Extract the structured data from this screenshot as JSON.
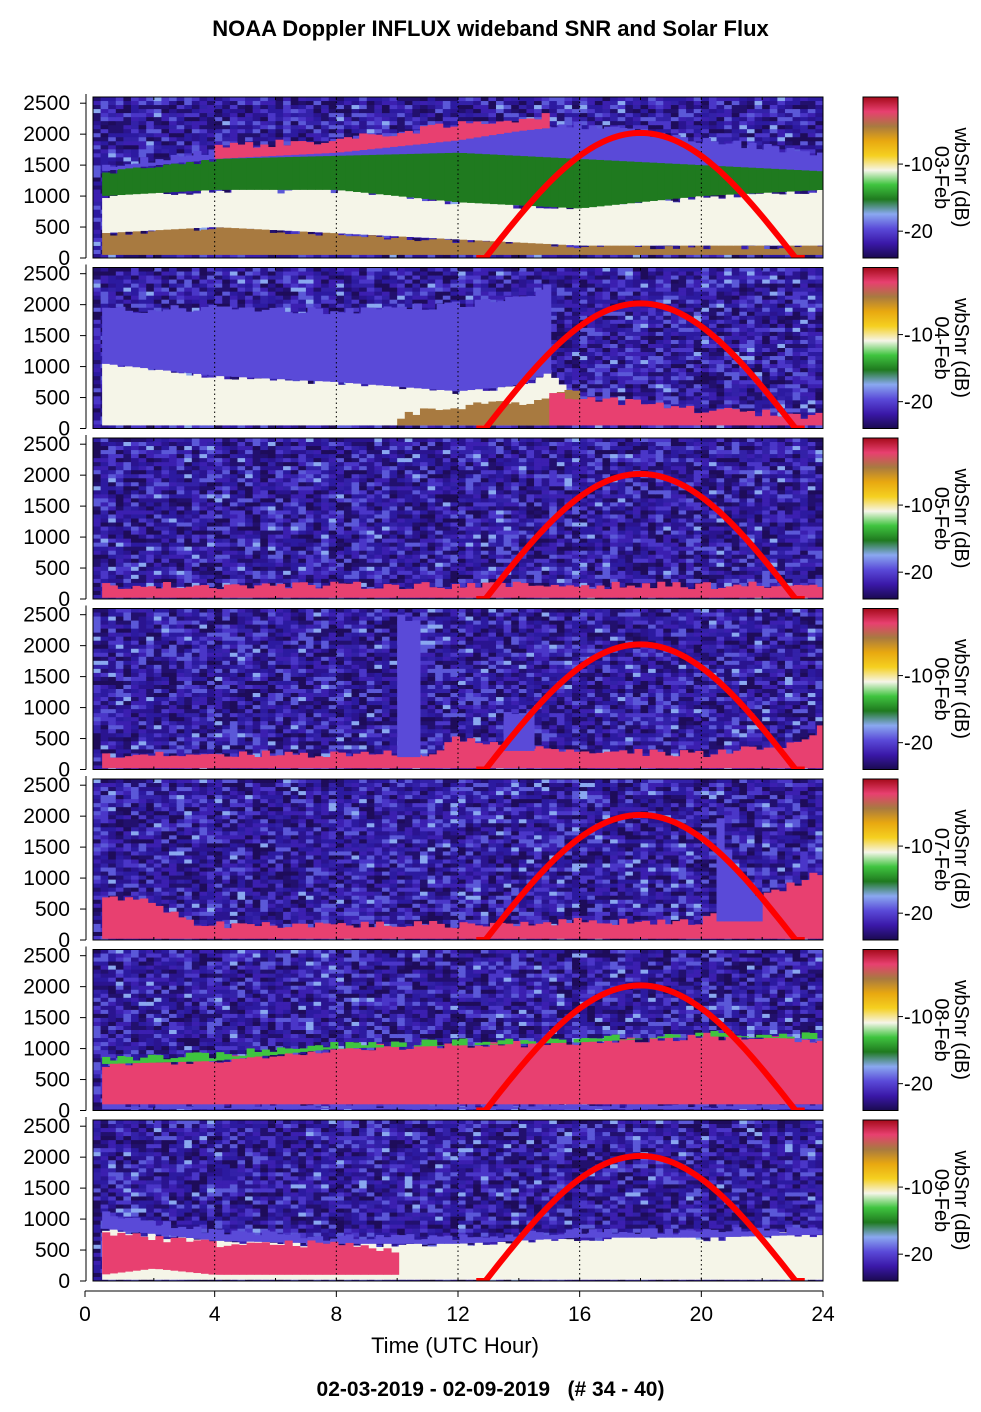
{
  "title": "NOAA Doppler INFLUX wideband SNR and Solar Flux",
  "footer": "02-03-2019 - 02-09-2019   (# 34 - 40)",
  "colors": {
    "solar_curve": "#ff0000",
    "colormap": [
      "#1a0a50",
      "#3a18a8",
      "#5a4ad8",
      "#8aa8f0",
      "#1f7a1f",
      "#3fc43f",
      "#f5f5e8",
      "#f5d020",
      "#e8a810",
      "#a87a40",
      "#e84070",
      "#a50a1a"
    ]
  },
  "chart_data": {
    "type": "heatmap",
    "xlabel": "Time (UTC Hour)",
    "xlim": [
      0,
      24
    ],
    "xticks": [
      0,
      4,
      8,
      12,
      16,
      20,
      24
    ],
    "ylim": [
      0,
      2600
    ],
    "yticks": [
      0,
      500,
      1000,
      1500,
      2000,
      2500
    ],
    "colorbar": {
      "label": "wbSnr (dB)",
      "ticks": [
        -10,
        -20
      ],
      "tick_labels": [
        "-10",
        "-20"
      ]
    },
    "solar_flux_curve": {
      "start_hour": 12.9,
      "peak_hour": 18.0,
      "end_hour": 23.1,
      "peak_y": 2020
    },
    "panels": [
      {
        "date": "03-Feb",
        "features": [
          {
            "kind": "band",
            "x": [
              0.3,
              4,
              8,
              12,
              16,
              20,
              24
            ],
            "y0": [
              50,
              50,
              50,
              50,
              50,
              50,
              50
            ],
            "y1": [
              400,
              500,
              400,
              300,
              200,
              200,
              200
            ],
            "level": -5
          },
          {
            "kind": "band",
            "x": [
              0.3,
              4,
              8,
              12,
              16,
              20,
              24
            ],
            "y0": [
              400,
              500,
              400,
              300,
              200,
              200,
              200
            ],
            "y1": [
              1000,
              1100,
              1100,
              900,
              800,
              1000,
              1100
            ],
            "level": -11
          },
          {
            "kind": "band",
            "x": [
              0.3,
              4,
              8,
              12,
              16,
              20,
              24
            ],
            "y0": [
              1000,
              1100,
              1100,
              900,
              800,
              1000,
              1100
            ],
            "y1": [
              1400,
              1600,
              1750,
              1800,
              1700,
              1600,
              1500
            ],
            "level": -16
          },
          {
            "kind": "band",
            "x": [
              0.3,
              4,
              8,
              12,
              16,
              20,
              24
            ],
            "y0": [
              1400,
              1600,
              1650,
              1700,
              1600,
              1500,
              1400
            ],
            "y1": [
              1500,
              1700,
              1900,
              2100,
              2150,
              1900,
              1700
            ],
            "level": -19
          },
          {
            "kind": "band",
            "x": [
              4,
              8,
              12,
              14,
              15
            ],
            "y0": [
              1600,
              1700,
              1900,
              2050,
              2100
            ],
            "y1": [
              1800,
              1900,
              2150,
              2250,
              2300
            ],
            "level": -2
          }
        ]
      },
      {
        "date": "04-Feb",
        "features": [
          {
            "kind": "band",
            "x": [
              0.3,
              4,
              8,
              12,
              14,
              15,
              16
            ],
            "y0": [
              50,
              50,
              50,
              50,
              50,
              50,
              50
            ],
            "y1": [
              1050,
              850,
              750,
              600,
              700,
              900,
              400
            ],
            "level": -12
          },
          {
            "kind": "band",
            "x": [
              0.3,
              4,
              8,
              12,
              14,
              15
            ],
            "y0": [
              1050,
              850,
              750,
              600,
              700,
              900
            ],
            "y1": [
              1900,
              1950,
              1900,
              2000,
              2100,
              2300
            ],
            "level": -19
          },
          {
            "kind": "band",
            "x": [
              10,
              12,
              14,
              16
            ],
            "y0": [
              50,
              50,
              50,
              50
            ],
            "y1": [
              200,
              350,
              400,
              600
            ],
            "level": -5
          },
          {
            "kind": "band",
            "x": [
              15,
              16,
              18,
              20,
              22,
              24
            ],
            "y0": [
              50,
              50,
              50,
              50,
              50,
              50
            ],
            "y1": [
              600,
              500,
              400,
              300,
              250,
              200
            ],
            "level": -2
          }
        ]
      },
      {
        "date": "05-Feb",
        "features": [
          {
            "kind": "band",
            "x": [
              0.3,
              24
            ],
            "y0": [
              20,
              20
            ],
            "y1": [
              220,
              220
            ],
            "level": -2
          }
        ]
      },
      {
        "date": "06-Feb",
        "features": [
          {
            "kind": "band",
            "x": [
              0.3,
              11,
              12,
              14,
              16,
              20,
              23,
              24
            ],
            "y0": [
              20,
              20,
              20,
              20,
              20,
              20,
              20,
              20
            ],
            "y1": [
              250,
              250,
              500,
              400,
              300,
              250,
              400,
              700
            ],
            "level": -2
          },
          {
            "kind": "band",
            "x": [
              10,
              10.6
            ],
            "y0": [
              200,
              200
            ],
            "y1": [
              2450,
              2450
            ],
            "level": -19
          },
          {
            "kind": "band",
            "x": [
              13.5,
              14.5
            ],
            "y0": [
              300,
              300
            ],
            "y1": [
              900,
              900
            ],
            "level": -19
          }
        ]
      },
      {
        "date": "07-Feb",
        "features": [
          {
            "kind": "band",
            "x": [
              0.3,
              2,
              3,
              4,
              12,
              16,
              20,
              24
            ],
            "y0": [
              20,
              20,
              20,
              20,
              20,
              20,
              20,
              20
            ],
            "y1": [
              700,
              600,
              300,
              250,
              250,
              300,
              300,
              1100
            ],
            "level": -2
          },
          {
            "kind": "band",
            "x": [
              20.5,
              21,
              22
            ],
            "y0": [
              300,
              300,
              300
            ],
            "y1": [
              2300,
              1200,
              700
            ],
            "level": -19
          }
        ]
      },
      {
        "date": "08-Feb",
        "features": [
          {
            "kind": "band",
            "x": [
              0.3,
              24
            ],
            "y0": [
              20,
              20
            ],
            "y1": [
              100,
              100
            ],
            "level": -19
          },
          {
            "kind": "band",
            "x": [
              0.3,
              4,
              8,
              12,
              16,
              20,
              24
            ],
            "y0": [
              100,
              100,
              100,
              100,
              100,
              100,
              100
            ],
            "y1": [
              750,
              800,
              1000,
              1050,
              1100,
              1200,
              1150
            ],
            "level": -2
          },
          {
            "kind": "band",
            "x": [
              0.3,
              4,
              8,
              12,
              16,
              20,
              24
            ],
            "y0": [
              750,
              800,
              1000,
              1050,
              1100,
              1200,
              1150
            ],
            "y1": [
              850,
              900,
              1050,
              1100,
              1150,
              1250,
              1200
            ],
            "level": -13
          }
        ]
      },
      {
        "date": "09-Feb",
        "features": [
          {
            "kind": "band",
            "x": [
              0.3,
              4,
              8,
              12,
              16,
              20,
              24
            ],
            "y0": [
              20,
              20,
              20,
              20,
              20,
              20,
              20
            ],
            "y1": [
              850,
              650,
              600,
              600,
              700,
              700,
              750
            ],
            "level": -11
          },
          {
            "kind": "band",
            "x": [
              0.3,
              4,
              8,
              12,
              16,
              20,
              24
            ],
            "y0": [
              850,
              650,
              600,
              600,
              700,
              700,
              750
            ],
            "y1": [
              1100,
              800,
              700,
              700,
              800,
              800,
              850
            ],
            "level": -19
          },
          {
            "kind": "band",
            "x": [
              0.3,
              2,
              4,
              8,
              10
            ],
            "y0": [
              100,
              200,
              100,
              100,
              100
            ],
            "y1": [
              800,
              700,
              600,
              600,
              500
            ],
            "level": -2
          }
        ]
      }
    ]
  }
}
